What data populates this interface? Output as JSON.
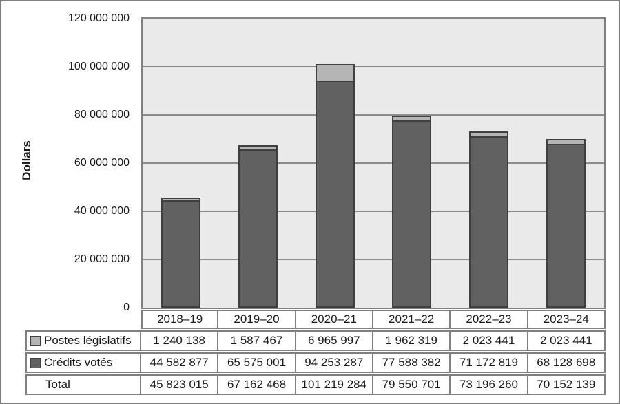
{
  "figure": {
    "y_axis_title": "Dollars",
    "y_tick_labels": [
      "0",
      "20 000 000",
      "40 000 000",
      "60 000 000",
      "80 000 000",
      "100 000 000",
      "120 000 000"
    ]
  },
  "chart_data": {
    "type": "bar",
    "stacked": true,
    "title": "",
    "xlabel": "",
    "ylabel": "Dollars",
    "ylim": [
      0,
      120000000
    ],
    "ytick_step": 20000000,
    "grid": true,
    "legend_position": "in-table-row-labels",
    "categories": [
      "2018–19",
      "2019–20",
      "2020–21",
      "2021–22",
      "2022–23",
      "2023–24"
    ],
    "series": [
      {
        "name": "Crédits votés",
        "color": "#616161",
        "values": [
          44582877,
          65575001,
          94253287,
          77588382,
          71172819,
          68128698
        ]
      },
      {
        "name": "Postes législatifs",
        "color": "#b5b5b5",
        "values": [
          1240138,
          1587467,
          6965997,
          1962319,
          2023441,
          2023441
        ]
      }
    ],
    "totals": [
      45823015,
      67162468,
      101219284,
      79550701,
      73196260,
      70152139
    ]
  },
  "table": {
    "column_headers": [
      "2018–19",
      "2019–20",
      "2020–21",
      "2021–22",
      "2022–23",
      "2023–24"
    ],
    "rows": [
      {
        "label": "Postes législatifs",
        "swatch_color": "#b5b5b5",
        "values": [
          "1 240 138",
          "1 587 467",
          "6 965 997",
          "1 962 319",
          "2 023 441",
          "2 023 441"
        ]
      },
      {
        "label": "Crédits votés",
        "swatch_color": "#616161",
        "values": [
          "44 582 877",
          "65 575 001",
          "94 253 287",
          "77 588 382",
          "71 172 819",
          "68 128 698"
        ]
      },
      {
        "label": "Total",
        "swatch_color": null,
        "values": [
          "45 823 015",
          "67 162 468",
          "101 219 284",
          "79 550 701",
          "73 196 260",
          "70 152 139"
        ]
      }
    ]
  },
  "colors": {
    "bar_dark": "#616161",
    "bar_light": "#b5b5b5",
    "bar_border": "#3f3f3f",
    "plot_background": "#eaeaea",
    "gridline": "#8b8b8b",
    "frame_border": "#7f7f7f",
    "text": "#1a1a1a"
  }
}
